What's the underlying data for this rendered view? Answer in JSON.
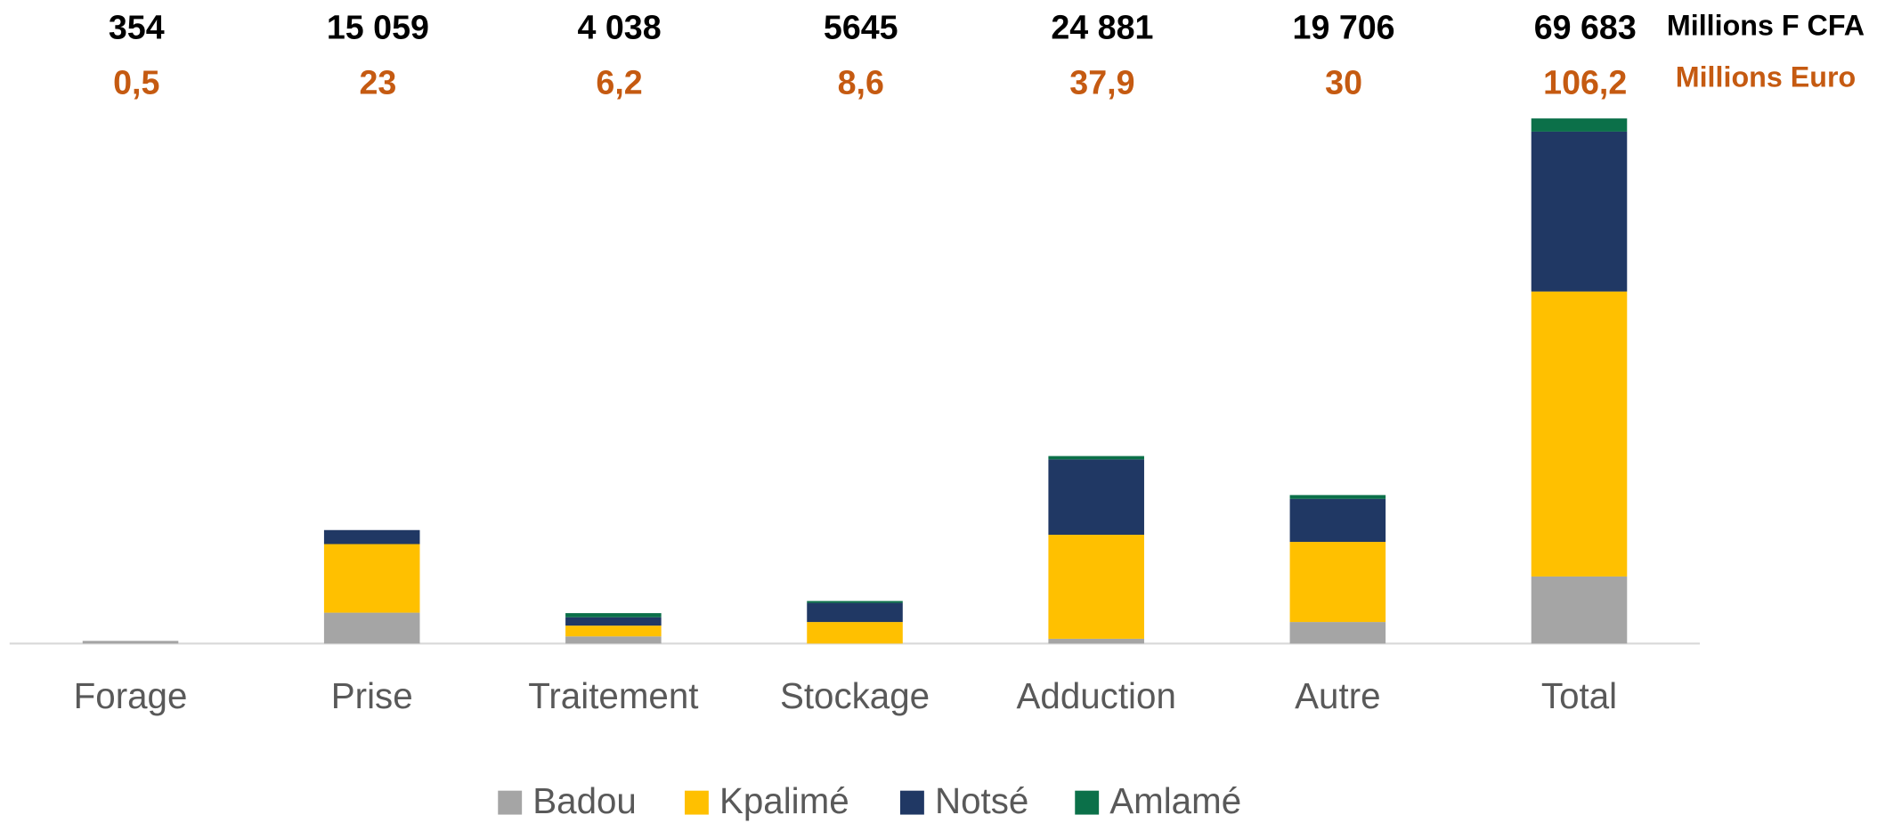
{
  "chart_data": {
    "type": "stacked_bar",
    "categories": [
      "Forage",
      "Prise",
      "Traitement",
      "Stockage",
      "Adduction",
      "Autre",
      "Total"
    ],
    "series": [
      {
        "name": "Badou",
        "color": "#a5a5a5",
        "values": [
          354,
          4100,
          950,
          0,
          635,
          2860,
          8899
        ]
      },
      {
        "name": "Kpalimé",
        "color": "#ffc000",
        "values": [
          0,
          9100,
          1430,
          2860,
          13800,
          10630,
          37820
        ]
      },
      {
        "name": "Notsé",
        "color": "#203864",
        "values": [
          0,
          1859,
          1108,
          2540,
          10000,
          5710,
          21217
        ]
      },
      {
        "name": "Amlamé",
        "color": "#0b7049",
        "values": [
          0,
          0,
          550,
          245,
          446,
          506,
          1747
        ]
      }
    ],
    "total_labels": [
      "354",
      "15 059",
      "4 038",
      "5645",
      "24 881",
      "19 706",
      "69 683"
    ],
    "euro_labels": [
      "0,5",
      "23",
      "6,2",
      "8,6",
      "37,9",
      "30",
      "106,2"
    ],
    "total_unit": "Millions F CFA",
    "euro_unit": "Millions Euro",
    "legend": "bottom"
  }
}
